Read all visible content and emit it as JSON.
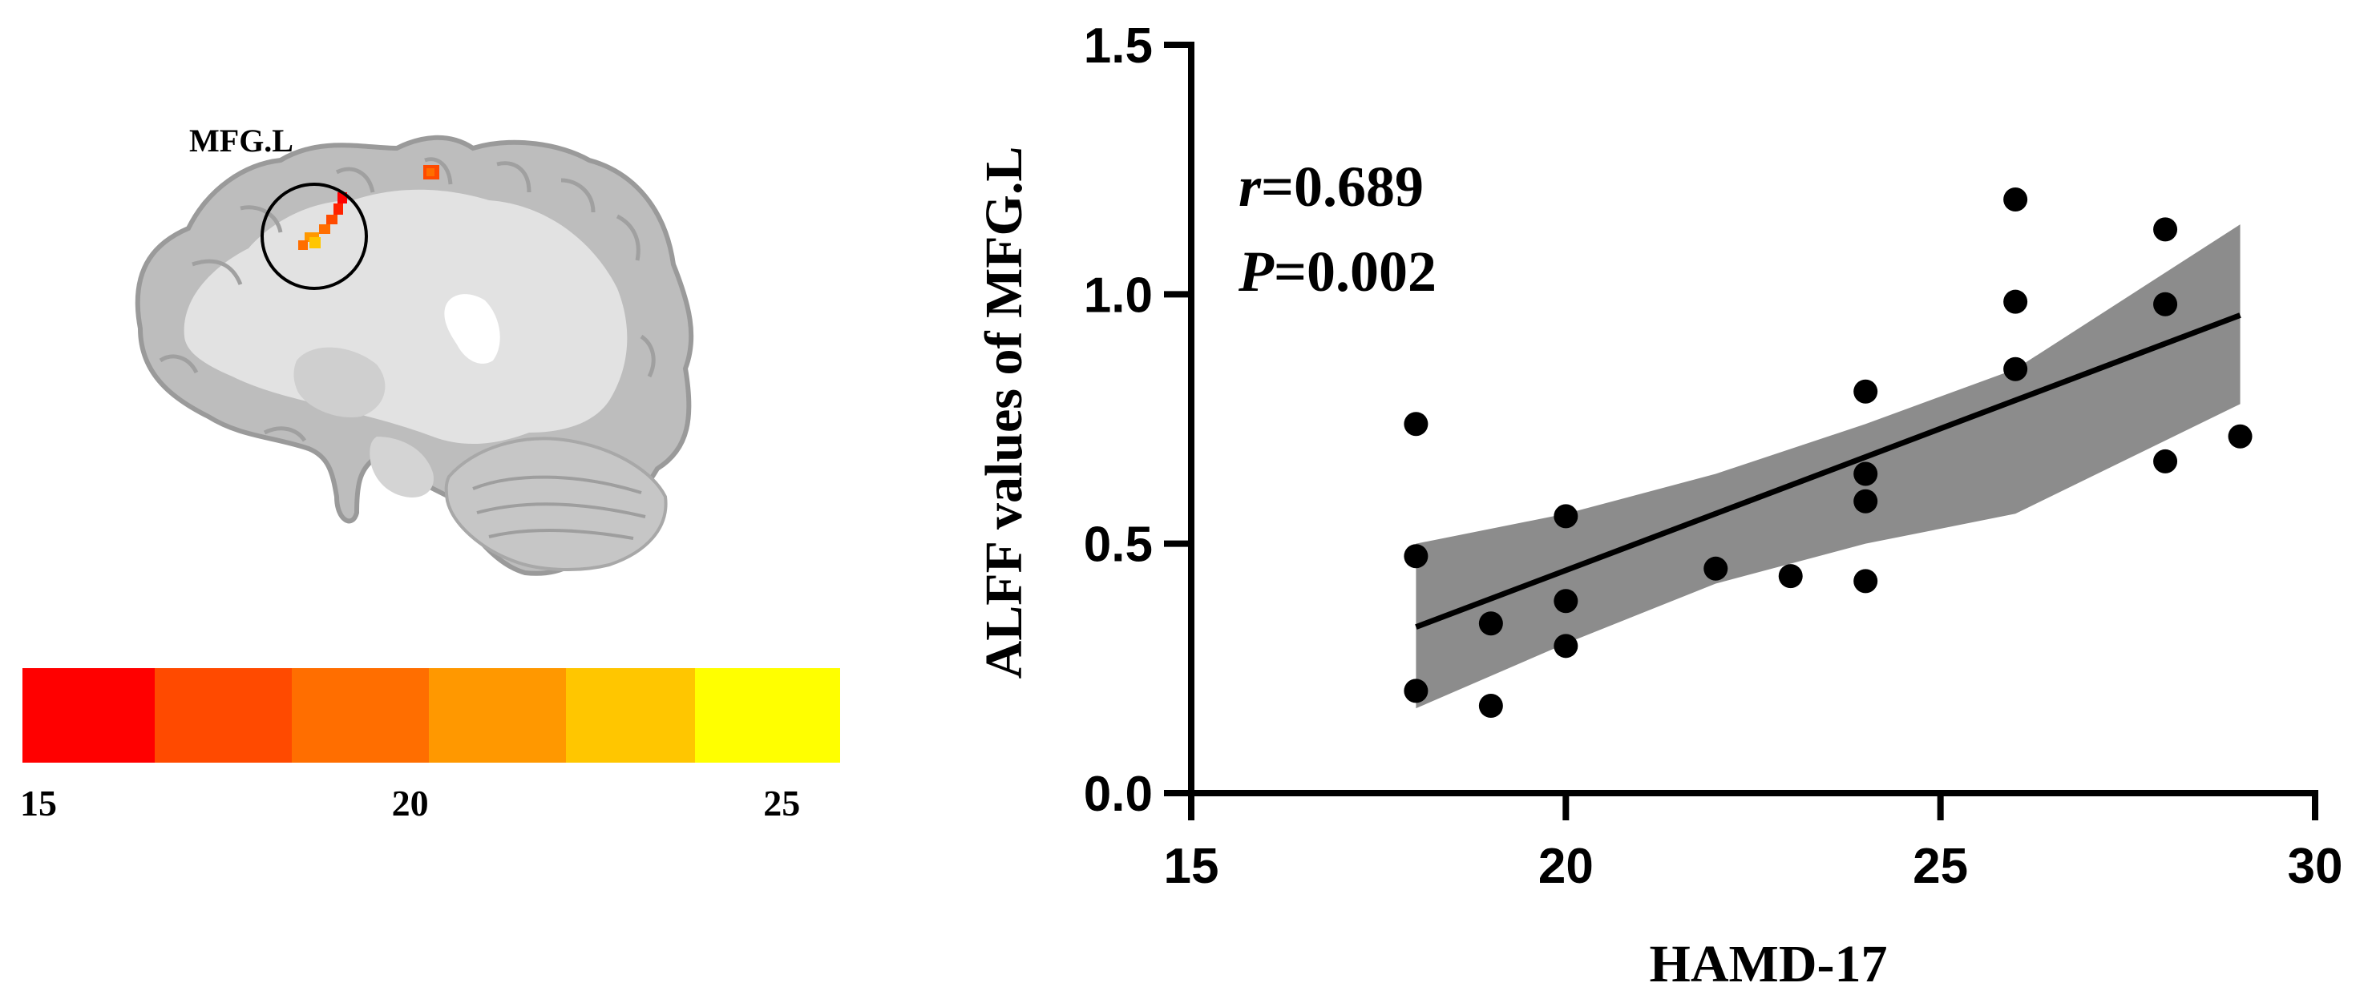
{
  "panel_left": {
    "region_label": "MFG.L",
    "colorbar": {
      "colors": [
        "#FF0000",
        "#FF4A00",
        "#FF6E00",
        "#FF9800",
        "#FFC600",
        "#FFFF00"
      ],
      "tick_labels": [
        {
          "label": "15",
          "value": 15
        },
        {
          "label": "20",
          "value": 20
        },
        {
          "label": "25",
          "value": 25
        }
      ],
      "range": [
        15,
        26
      ]
    },
    "brain_image": "sagittal-brain-slice"
  },
  "chart_data": {
    "type": "scatter",
    "title": "",
    "xlabel": "HAMD-17",
    "ylabel": "ALFF values of MFG.L",
    "xlim": [
      15,
      30
    ],
    "ylim": [
      0,
      1.5
    ],
    "xticks": [
      15,
      20,
      25,
      30
    ],
    "xtick_labels": [
      "15",
      "20",
      "25",
      "30"
    ],
    "yticks": [
      0,
      0.5,
      1.0,
      1.5
    ],
    "ytick_labels": [
      "0.0",
      "0.5",
      "1.0",
      "1.5"
    ],
    "grid": false,
    "legend": "none",
    "annotation": {
      "r_symbol": "r",
      "r_value": "=0.689",
      "p_symbol": "P",
      "p_value": "=0.002"
    },
    "points": [
      {
        "x": 18,
        "y": 0.74
      },
      {
        "x": 18,
        "y": 0.475
      },
      {
        "x": 18,
        "y": 0.205
      },
      {
        "x": 19,
        "y": 0.34
      },
      {
        "x": 19,
        "y": 0.175
      },
      {
        "x": 20,
        "y": 0.555
      },
      {
        "x": 20,
        "y": 0.385
      },
      {
        "x": 20,
        "y": 0.295
      },
      {
        "x": 22,
        "y": 0.45
      },
      {
        "x": 23,
        "y": 0.435
      },
      {
        "x": 24,
        "y": 0.805
      },
      {
        "x": 24,
        "y": 0.64
      },
      {
        "x": 24,
        "y": 0.585
      },
      {
        "x": 24,
        "y": 0.425
      },
      {
        "x": 26,
        "y": 1.19
      },
      {
        "x": 26,
        "y": 0.985
      },
      {
        "x": 26,
        "y": 0.85
      },
      {
        "x": 28,
        "y": 1.13
      },
      {
        "x": 28,
        "y": 0.98
      },
      {
        "x": 28,
        "y": 0.665
      },
      {
        "x": 29,
        "y": 0.715
      }
    ],
    "fit_line": {
      "x": [
        18,
        29
      ],
      "y": [
        0.333,
        0.958
      ]
    },
    "confidence_band": {
      "x": [
        18,
        20,
        22,
        24,
        26,
        29
      ],
      "upper": [
        0.5,
        0.56,
        0.64,
        0.74,
        0.85,
        1.14
      ],
      "lower": [
        0.17,
        0.3,
        0.42,
        0.5,
        0.56,
        0.78
      ]
    },
    "colors": {
      "points": "#000000",
      "line": "#000000",
      "band": "#8C8C8C",
      "axis": "#000000"
    }
  }
}
